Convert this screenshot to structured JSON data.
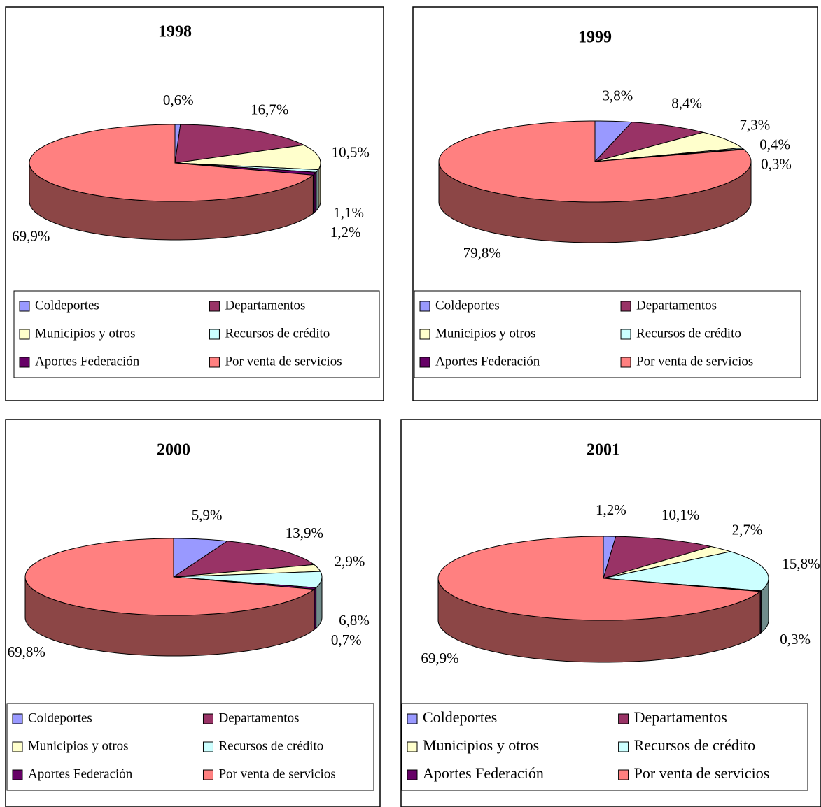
{
  "chart_data": [
    {
      "type": "pie",
      "title": "1998",
      "categories": [
        "Coldeportes",
        "Departamentos",
        "Municipios y otros",
        "Recursos de crédito",
        "Aportes Federación",
        "Por venta de servicios"
      ],
      "colors": [
        "#9999ff",
        "#993366",
        "#ffffcc",
        "#ccffff",
        "#660066",
        "#ff8080"
      ],
      "values": [
        0.6,
        16.7,
        10.5,
        1.1,
        1.2,
        69.9
      ],
      "value_labels": [
        "0,6%",
        "16,7%",
        "10,5%",
        "1,1%",
        "1,2%",
        "69,9%"
      ]
    },
    {
      "type": "pie",
      "title": "1999",
      "categories": [
        "Coldeportes",
        "Departamentos",
        "Municipios y otros",
        "Recursos de crédito",
        "Aportes Federación",
        "Por venta de servicios"
      ],
      "colors": [
        "#9999ff",
        "#993366",
        "#ffffcc",
        "#ccffff",
        "#660066",
        "#ff8080"
      ],
      "values": [
        3.8,
        8.4,
        7.3,
        0.4,
        0.3,
        79.8
      ],
      "value_labels": [
        "3,8%",
        "8,4%",
        "7,3%",
        "0,4%",
        "0,3%",
        "79,8%"
      ]
    },
    {
      "type": "pie",
      "title": "2000",
      "categories": [
        "Coldeportes",
        "Departamentos",
        "Municipios y otros",
        "Recursos de crédito",
        "Aportes Federación",
        "Por venta de servicios"
      ],
      "colors": [
        "#9999ff",
        "#993366",
        "#ffffcc",
        "#ccffff",
        "#660066",
        "#ff8080"
      ],
      "values": [
        5.9,
        13.9,
        2.9,
        6.8,
        0.7,
        69.8
      ],
      "value_labels": [
        "5,9%",
        "13,9%",
        "2,9%",
        "6,8%",
        "0,7%",
        "69,8%"
      ]
    },
    {
      "type": "pie",
      "title": "2001",
      "categories": [
        "Coldeportes",
        "Departamentos",
        "Municipios y otros",
        "Recursos de crédito",
        "Aportes Federación",
        "Por venta de servicios"
      ],
      "colors": [
        "#9999ff",
        "#993366",
        "#ffffcc",
        "#ccffff",
        "#660066",
        "#ff8080"
      ],
      "values": [
        1.2,
        10.1,
        2.7,
        15.8,
        0.3,
        69.9
      ],
      "value_labels": [
        "1,2%",
        "10,1%",
        "2,7%",
        "15,8%",
        "0,3%",
        "69,9%"
      ]
    }
  ]
}
